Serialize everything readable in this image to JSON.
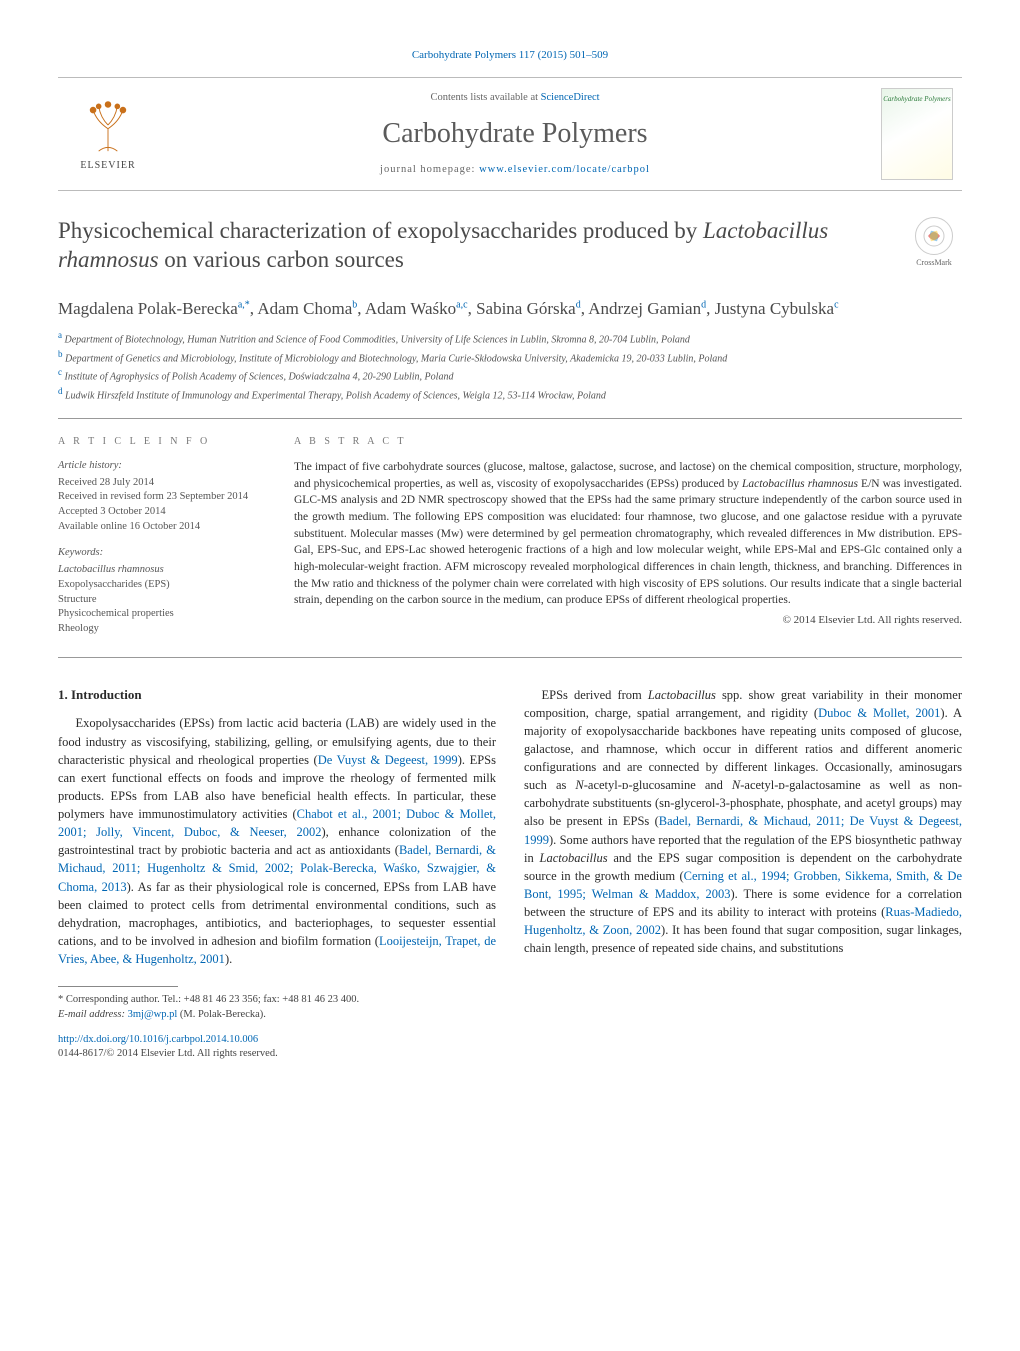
{
  "citation": "Carbohydrate Polymers 117 (2015) 501–509",
  "masthead": {
    "contents_prefix": "Contents lists available at ",
    "contents_link": "ScienceDirect",
    "journal_name": "Carbohydrate Polymers",
    "homepage_prefix": "journal homepage: ",
    "homepage_link": "www.elsevier.com/locate/carbpol",
    "publisher": "ELSEVIER",
    "cover_label": "Carbohydrate Polymers"
  },
  "crossmark_label": "CrossMark",
  "title_plain_prefix": "Physicochemical characterization of exopolysaccharides produced by ",
  "title_species": "Lactobacillus rhamnosus",
  "title_plain_suffix": " on various carbon sources",
  "authors_html": "Magdalena Polak-Berecka<sup>a,*</sup>, Adam Choma<sup>b</sup>, Adam Waśko<sup>a,c</sup>, Sabina Górska<sup>d</sup>, Andrzej Gamian<sup>d</sup>, Justyna Cybulska<sup>c</sup>",
  "affiliations": [
    {
      "sup": "a",
      "text": "Department of Biotechnology, Human Nutrition and Science of Food Commodities, University of Life Sciences in Lublin, Skromna 8, 20-704 Lublin, Poland"
    },
    {
      "sup": "b",
      "text": "Department of Genetics and Microbiology, Institute of Microbiology and Biotechnology, Maria Curie-Skłodowska University, Akademicka 19, 20-033 Lublin, Poland"
    },
    {
      "sup": "c",
      "text": "Institute of Agrophysics of Polish Academy of Sciences, Doświadczalna 4, 20-290 Lublin, Poland"
    },
    {
      "sup": "d",
      "text": "Ludwik Hirszfeld Institute of Immunology and Experimental Therapy, Polish Academy of Sciences, Weigla 12, 53-114 Wrocław, Poland"
    }
  ],
  "article_info": {
    "heading": "A R T I C L E   I N F O",
    "history_label": "Article history:",
    "history": [
      "Received 28 July 2014",
      "Received in revised form 23 September 2014",
      "Accepted 3 October 2014",
      "Available online 16 October 2014"
    ],
    "keywords_label": "Keywords:",
    "keywords": [
      "Lactobacillus rhamnosus",
      "Exopolysaccharides (EPS)",
      "Structure",
      "Physicochemical properties",
      "Rheology"
    ]
  },
  "abstract": {
    "heading": "A B S T R A C T",
    "text_pre": "The impact of five carbohydrate sources (glucose, maltose, galactose, sucrose, and lactose) on the chemical composition, structure, morphology, and physicochemical properties, as well as, viscosity of exopolysaccharides (EPSs) produced by ",
    "species": "Lactobacillus rhamnosus",
    "text_post": " E/N was investigated. GLC-MS analysis and 2D NMR spectroscopy showed that the EPSs had the same primary structure independently of the carbon source used in the growth medium. The following EPS composition was elucidated: four rhamnose, two glucose, and one galactose residue with a pyruvate substituent. Molecular masses (Mw) were determined by gel permeation chromatography, which revealed differences in Mw distribution. EPS-Gal, EPS-Suc, and EPS-Lac showed heterogenic fractions of a high and low molecular weight, while EPS-Mal and EPS-Glc contained only a high-molecular-weight fraction. AFM microscopy revealed morphological differences in chain length, thickness, and branching. Differences in the Mw ratio and thickness of the polymer chain were correlated with high viscosity of EPS solutions. Our results indicate that a single bacterial strain, depending on the carbon source in the medium, can produce EPSs of different rheological properties.",
    "copyright": "© 2014 Elsevier Ltd. All rights reserved."
  },
  "body": {
    "section_heading": "1.  Introduction",
    "p1_a": "Exopolysaccharides (EPSs) from lactic acid bacteria (LAB) are widely used in the food industry as viscosifying, stabilizing, gelling, or emulsifying agents, due to their characteristic physical and rheological properties (",
    "p1_r1": "De Vuyst & Degeest, 1999",
    "p1_b": "). EPSs can exert functional effects on foods and improve the rheology of fermented milk products. EPSs from LAB also have beneficial health effects. In particular, these polymers have immunostimulatory activities (",
    "p1_r2": "Chabot et al., 2001; Duboc & Mollet, 2001; Jolly, Vincent, Duboc, & Neeser, 2002",
    "p1_c": "), enhance colonization of the gastrointestinal tract by probiotic bacteria and act as antioxidants (",
    "p1_r3": "Badel, Bernardi, & Michaud, 2011; Hugenholtz & Smid, 2002; Polak-Berecka, Waśko, Szwajgier, & Choma, 2013",
    "p1_d": "). As far as their physiological role is concerned, EPSs from LAB have been claimed to protect cells from detrimental environmental conditions, such as dehydration, macrophages, antibiotics, and bacteriophages, to sequester essential cations, and to be involved in adhesion and biofilm formation (",
    "p1_r4": "Looijesteijn, Trapet, de Vries, Abee, & Hugenholtz, 2001",
    "p1_e": ").",
    "p2_a": "EPSs derived from ",
    "p2_sp1": "Lactobacillus",
    "p2_b": " spp. show great variability in their monomer composition, charge, spatial arrangement, and rigidity (",
    "p2_r1": "Duboc & Mollet, 2001",
    "p2_c": "). A majority of exopolysaccharide backbones have repeating units composed of glucose, galactose, and rhamnose, which occur in different ratios and different anomeric configurations and are connected by different linkages. Occasionally, aminosugars such as ",
    "p2_i1": "N",
    "p2_d": "-acetyl-ᴅ-glucosamine and ",
    "p2_i2": "N",
    "p2_e": "-acetyl-ᴅ-galactosamine as well as non-carbohydrate substituents (sn-glycerol-3-phosphate, phosphate, and acetyl groups) may also be present in EPSs (",
    "p2_r2": "Badel, Bernardi, & Michaud, 2011; De Vuyst & Degeest, 1999",
    "p2_f": "). Some authors have reported that the regulation of the EPS biosynthetic pathway in ",
    "p2_sp2": "Lactobacillus",
    "p2_g": " and the EPS sugar composition is dependent on the carbohydrate source in the growth medium (",
    "p2_r3": "Cerning et al., 1994; Grobben, Sikkema, Smith, & De Bont, 1995; Welman & Maddox, 2003",
    "p2_h": "). There is some evidence for a correlation between the structure of EPS and its ability to interact with proteins (",
    "p2_r4": "Ruas-Madiedo, Hugenholtz, & Zoon, 2002",
    "p2_i": "). It has been found that sugar composition, sugar linkages, chain length, presence of repeated side chains, and substitutions"
  },
  "footnotes": {
    "corresponding": "* Corresponding author. Tel.: +48 81 46 23 356; fax: +48 81 46 23 400.",
    "email_label": "E-mail address: ",
    "email": "3mj@wp.pl",
    "email_of": " (M. Polak-Berecka)."
  },
  "doi": "http://dx.doi.org/10.1016/j.carbpol.2014.10.006",
  "issn_line": "0144-8617/© 2014 Elsevier Ltd. All rights reserved.",
  "colors": {
    "link": "#0066b3",
    "text": "#2a2a2a",
    "muted": "#666666",
    "rule": "#999999"
  }
}
